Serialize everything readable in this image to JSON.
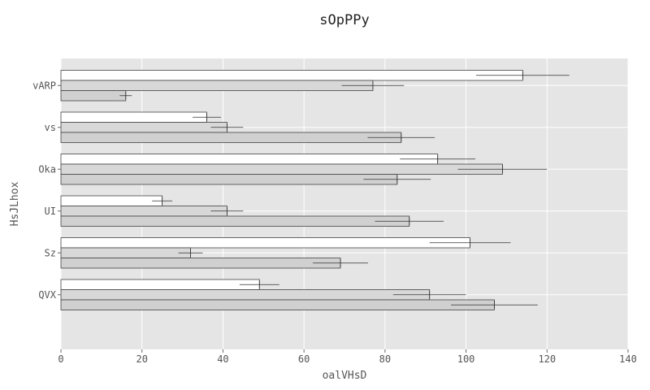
{
  "chart_data": {
    "type": "bar",
    "orientation": "horizontal",
    "title": "sOpPPy",
    "xlabel": "oalVHsD",
    "ylabel": "HsJLhox",
    "xlim": [
      0,
      140
    ],
    "xticks": [
      0,
      20,
      40,
      60,
      80,
      100,
      120,
      140
    ],
    "categories": [
      "vARP",
      "vs",
      "Oka",
      "UI",
      "Sz",
      "QVX"
    ],
    "grid": true,
    "legend": "none",
    "error_bars": true,
    "series": [
      {
        "color": "#ffffff",
        "values": [
          114,
          36,
          93,
          25,
          101,
          49
        ],
        "errors": [
          11.5,
          3.5,
          9.3,
          2.5,
          10,
          4.9
        ]
      },
      {
        "color": "#d8d8d8",
        "values": [
          77,
          41,
          109,
          41,
          32,
          91
        ],
        "errors": [
          7.7,
          4,
          11,
          4,
          3,
          9
        ]
      },
      {
        "color": "#d0d0d0",
        "values": [
          16,
          84,
          83,
          86,
          69,
          107
        ],
        "errors": [
          1.5,
          8.3,
          8.3,
          8.5,
          6.8,
          10.7
        ]
      }
    ]
  }
}
